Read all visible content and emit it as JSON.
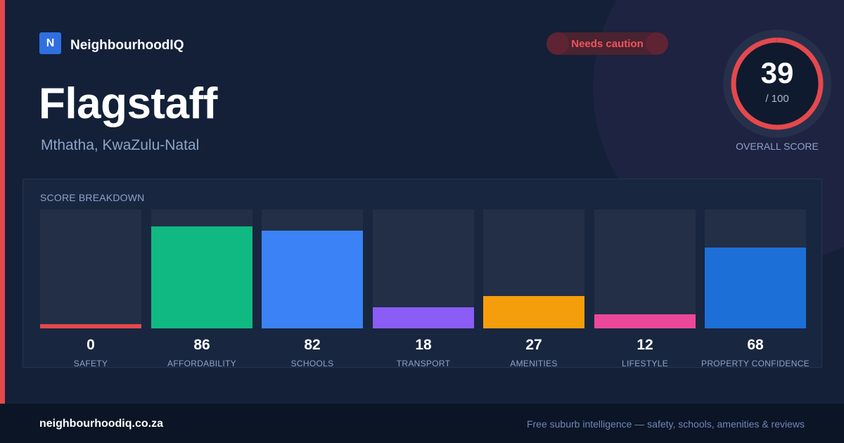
{
  "brand": {
    "logo_letter": "N",
    "name": "NeighbourhoodIQ",
    "logo_color": "#2f6fe0"
  },
  "location": {
    "city": "Flagstaff",
    "region": "Mthatha, KwaZulu-Natal"
  },
  "badge": {
    "label": "Needs caution",
    "color": "#f0545a"
  },
  "overall": {
    "score": "39",
    "denominator": "/ 100",
    "label": "OVERALL SCORE",
    "max": 100,
    "ring_color": "#e5484d"
  },
  "breakdown": {
    "title": "SCORE BREAKDOWN",
    "items": [
      {
        "label": "SAFETY",
        "value": "0",
        "score": 0,
        "color": "#e5484d"
      },
      {
        "label": "AFFORDABILITY",
        "value": "86",
        "score": 86,
        "color": "#10b981"
      },
      {
        "label": "SCHOOLS",
        "value": "82",
        "score": 82,
        "color": "#3b82f6"
      },
      {
        "label": "TRANSPORT",
        "value": "18",
        "score": 18,
        "color": "#8b5cf6"
      },
      {
        "label": "AMENITIES",
        "value": "27",
        "score": 27,
        "color": "#f59e0b"
      },
      {
        "label": "LIFESTYLE",
        "value": "12",
        "score": 12,
        "color": "#ec4899"
      },
      {
        "label": "PROPERTY CONFIDENCE",
        "value": "68",
        "score": 68,
        "color": "#1d6fd8"
      }
    ]
  },
  "footer": {
    "domain": "neighbourhoodiq.co.za",
    "tagline": "Free suburb intelligence — safety, schools, amenities & reviews"
  }
}
